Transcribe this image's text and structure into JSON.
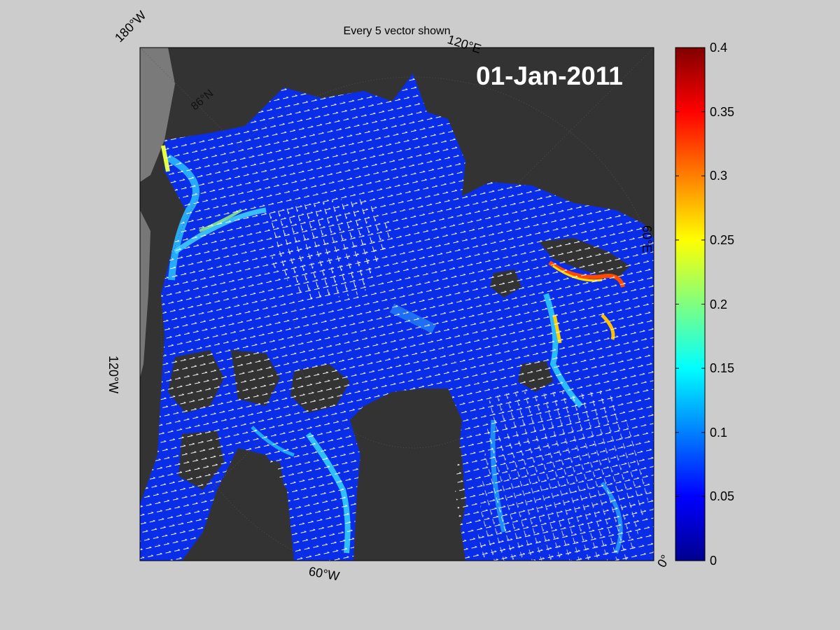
{
  "title": "Every 5 vector shown",
  "date_label": "01-Jan-2011",
  "map_labels": {
    "lon_180w": "180°W",
    "lon_120e": "120°E",
    "lat_86n": "86°N",
    "lon_60e": "60°E",
    "lon_120w": "120°W",
    "lon_60w": "60°W",
    "lon_0": "0°"
  },
  "colorbar": {
    "colormap": "jet",
    "min": 0,
    "max": 0.4,
    "ticks": [
      "0",
      "0.05",
      "0.1",
      "0.15",
      "0.2",
      "0.25",
      "0.3",
      "0.35",
      "0.4"
    ]
  },
  "colors": {
    "figure_background": "#cccccc",
    "land": "#333333",
    "ocean_low": "#0022dd",
    "vector_color": "#ffffff"
  }
}
